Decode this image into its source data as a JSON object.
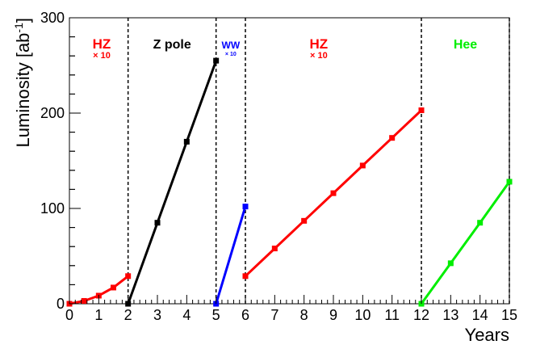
{
  "chart_data": {
    "type": "line",
    "title": "",
    "xlabel": "Years",
    "ylabel": "Luminosity [ab",
    "ylabel_sup": "-1",
    "ylabel_end": "]",
    "xlim": [
      0,
      15
    ],
    "ylim": [
      0,
      300
    ],
    "x_ticks": [
      "0",
      "1",
      "2",
      "3",
      "4",
      "5",
      "6",
      "7",
      "8",
      "9",
      "10",
      "11",
      "12",
      "13",
      "14",
      "15"
    ],
    "y_ticks": [
      "0",
      "100",
      "200",
      "300"
    ],
    "grid": false,
    "dividers": [
      2,
      5,
      6,
      12,
      15
    ],
    "series": [
      {
        "color": "#ff0000",
        "points": [
          [
            0,
            0
          ],
          [
            0.5,
            3
          ],
          [
            1,
            8.5
          ],
          [
            1.5,
            17
          ],
          [
            2,
            29
          ]
        ]
      },
      {
        "color": "#000000",
        "points": [
          [
            2,
            0
          ],
          [
            3,
            85
          ],
          [
            4,
            170
          ],
          [
            5,
            255
          ]
        ]
      },
      {
        "color": "#0000ff",
        "points": [
          [
            5,
            0
          ],
          [
            6,
            102
          ]
        ]
      },
      {
        "color": "#ff0000",
        "points": [
          [
            6,
            29
          ],
          [
            7,
            58
          ],
          [
            8,
            87
          ],
          [
            9,
            116
          ],
          [
            10,
            145
          ],
          [
            11,
            174
          ],
          [
            12,
            203
          ]
        ]
      },
      {
        "color": "#00ee00",
        "points": [
          [
            12,
            0
          ],
          [
            13,
            42.5
          ],
          [
            14,
            85
          ],
          [
            15,
            128
          ]
        ]
      }
    ],
    "annotations": [
      {
        "text": "HZ",
        "sub": "× 10",
        "color": "#ff0000",
        "x": 1.1,
        "size": 17
      },
      {
        "text": "Z pole",
        "sub": "",
        "color": "#000000",
        "x": 3.5,
        "size": 16
      },
      {
        "text": "WW",
        "sub": "× 10",
        "color": "#0000ff",
        "x": 5.5,
        "size": 12
      },
      {
        "text": "HZ",
        "sub": "× 10",
        "color": "#ff0000",
        "x": 8.5,
        "size": 17
      },
      {
        "text": "Hee",
        "sub": "",
        "color": "#00ee00",
        "x": 13.5,
        "size": 16
      }
    ]
  }
}
